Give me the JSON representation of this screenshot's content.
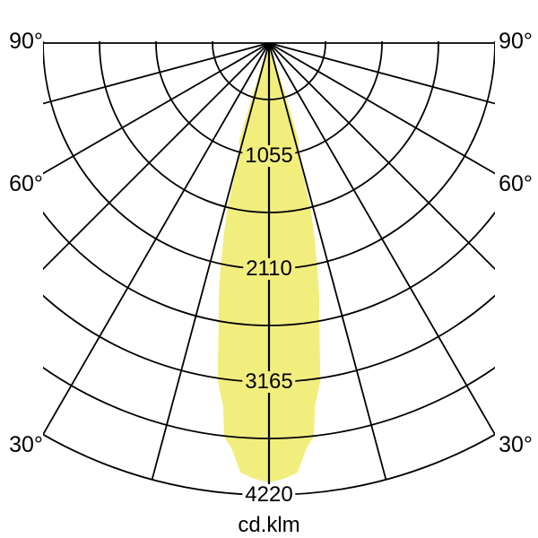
{
  "chart_data": {
    "type": "polar",
    "subtype": "photometric-light-distribution",
    "unit_label": "cd.klm",
    "value_max": 4220,
    "ring_step_value": 527.5,
    "ring_count": 8,
    "angle_step_deg": 15,
    "angle_range_deg": [
      -90,
      90
    ],
    "grid_on": true,
    "ring_labels": [
      {
        "text": "1055",
        "value": 1055,
        "bg": "beam"
      },
      {
        "text": "2110",
        "value": 2110,
        "bg": "beam"
      },
      {
        "text": "3165",
        "value": 3165,
        "bg": "beam"
      },
      {
        "text": "4220",
        "value": 4220,
        "bg": "page"
      }
    ],
    "angle_labels": {
      "left": [
        "90°",
        "60°",
        "30°"
      ],
      "right": [
        "90°",
        "60°",
        "30°"
      ]
    },
    "colors": {
      "beam_fill": "#f2ee7e",
      "grid_stroke": "#000000",
      "background": "#ffffff",
      "text": "#000000"
    },
    "beam": {
      "description": "intensity lobe, symmetric about 0° (nadir), values in cd/klm",
      "samples": [
        {
          "angle_deg": 18.0,
          "value": 0
        },
        {
          "angle_deg": 17.5,
          "value": 520
        },
        {
          "angle_deg": 17.0,
          "value": 950
        },
        {
          "angle_deg": 16.0,
          "value": 1000
        },
        {
          "angle_deg": 14.9,
          "value": 1075
        },
        {
          "angle_deg": 14.2,
          "value": 1570
        },
        {
          "angle_deg": 13.2,
          "value": 1860
        },
        {
          "angle_deg": 12.1,
          "value": 2160
        },
        {
          "angle_deg": 11.2,
          "value": 2420
        },
        {
          "angle_deg": 10.2,
          "value": 2655
        },
        {
          "angle_deg": 9.0,
          "value": 3050
        },
        {
          "angle_deg": 8.6,
          "value": 3195
        },
        {
          "angle_deg": 7.2,
          "value": 3420
        },
        {
          "angle_deg": 6.5,
          "value": 3700
        },
        {
          "angle_deg": 5.3,
          "value": 3800
        },
        {
          "angle_deg": 3.8,
          "value": 4020
        },
        {
          "angle_deg": 2.0,
          "value": 4070
        },
        {
          "angle_deg": 0.0,
          "value": 4105
        }
      ]
    }
  }
}
